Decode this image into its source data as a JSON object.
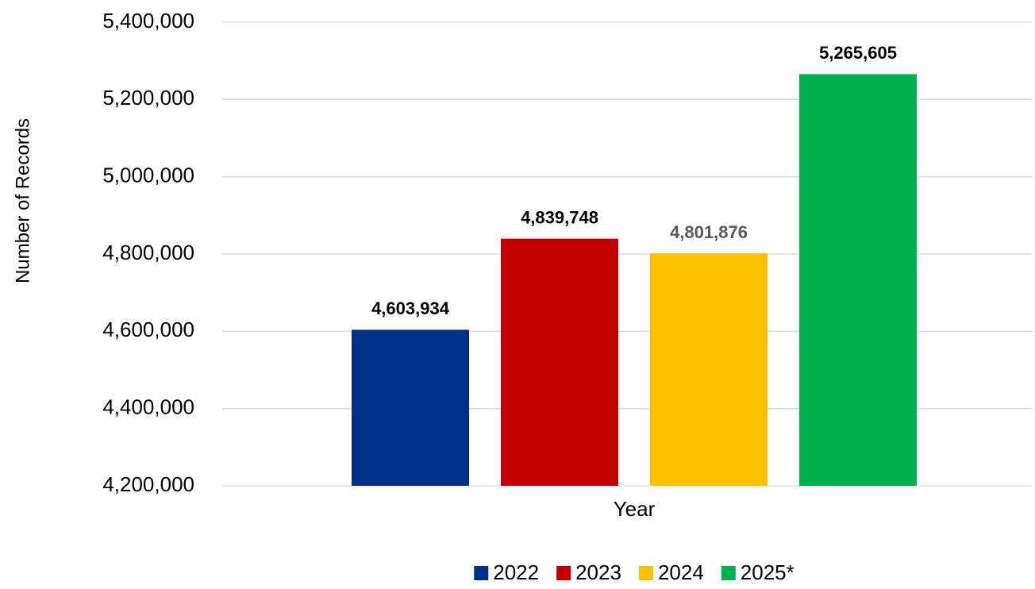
{
  "chart_data": {
    "type": "bar",
    "x_label": "Year",
    "y_label": "Number of Records",
    "categories": [
      null
    ],
    "series": [
      {
        "name": "2022",
        "color": "#003087",
        "label_color": "#000000",
        "values": [
          4603934
        ],
        "value_labels": [
          "4,603,934"
        ]
      },
      {
        "name": "2023",
        "color": "#c00000",
        "label_color": "#000000",
        "values": [
          4839748
        ],
        "value_labels": [
          "4,839,748"
        ]
      },
      {
        "name": "2024",
        "color": "#ffc000",
        "label_color": "#595959",
        "values": [
          4801876
        ],
        "value_labels": [
          "4,801,876"
        ]
      },
      {
        "name": "2025*",
        "color": "#00b050",
        "label_color": "#000000",
        "values": [
          5265605
        ],
        "value_labels": [
          "5,265,605"
        ]
      }
    ],
    "ylim": [
      4200000,
      5400000
    ],
    "yticks": [
      {
        "value": 4200000,
        "label": "4,200,000"
      },
      {
        "value": 4400000,
        "label": "4,400,000"
      },
      {
        "value": 4600000,
        "label": "4,600,000"
      },
      {
        "value": 4800000,
        "label": "4,800,000"
      },
      {
        "value": 5000000,
        "label": "5,000,000"
      },
      {
        "value": 5200000,
        "label": "5,200,000"
      },
      {
        "value": 5400000,
        "label": "5,400,000"
      }
    ],
    "grid": true,
    "legend": "bottom"
  }
}
